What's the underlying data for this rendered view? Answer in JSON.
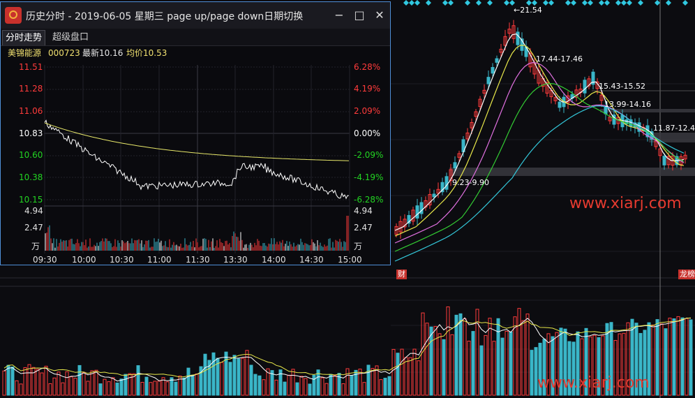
{
  "window": {
    "title": "历史分时 - 2019-06-05 星期三 page up/page down日期切换",
    "minimize_label": "−",
    "maximize_label": "□",
    "close_label": "✕"
  },
  "tabs": [
    {
      "label": "分时走势",
      "active": true
    },
    {
      "label": "超级盘口",
      "active": false
    }
  ],
  "stock": {
    "name": "美锦能源",
    "code": "000723",
    "latest_label": "最新10.16",
    "avg_label": "均价10.53"
  },
  "intraday": {
    "price_ticks": [
      "11.51",
      "11.28",
      "11.06",
      "10.83",
      "10.60",
      "10.38",
      "10.15"
    ],
    "pct_ticks": [
      "6.28%",
      "4.19%",
      "2.09%",
      "0.00%",
      "-2.09%",
      "-4.19%",
      "-6.28%"
    ],
    "volume_ticks_left": [
      "4.94",
      "2.47",
      "万"
    ],
    "volume_ticks_right": [
      "4.94",
      "2.47",
      "万"
    ],
    "time_ticks": [
      "09:30",
      "10:00",
      "10:30",
      "11:00",
      "11:30",
      "13:30",
      "14:00",
      "14:30",
      "15:00"
    ],
    "colors": {
      "up": "#ff3b3b",
      "down": "#22d422",
      "flat": "#ffffff",
      "price_line": "#ffffff",
      "avg_line": "#e8e86a"
    }
  },
  "kline": {
    "annotations": {
      "high": "←21.54",
      "a1": "17.44-17.46",
      "a2": "15.43-15.52",
      "a3": "13.99-14.16",
      "a4": "11.87-12.4",
      "a5": "9.23-9.90"
    },
    "tag_left": "财",
    "tag_right": "龙榜"
  },
  "watermarks": [
    "www.xiarj.com",
    "www.xiarj.com"
  ],
  "colors": {
    "bg": "#0c0c10",
    "candle_up": "#ff3b3b",
    "candle_down": "#3ab6c8",
    "ma5": "#ffffff",
    "ma10": "#e8e84a",
    "ma20": "#e070e0",
    "ma30": "#33cc33",
    "ma60": "#33c6d8",
    "accent_border": "#4f8fd8"
  }
}
